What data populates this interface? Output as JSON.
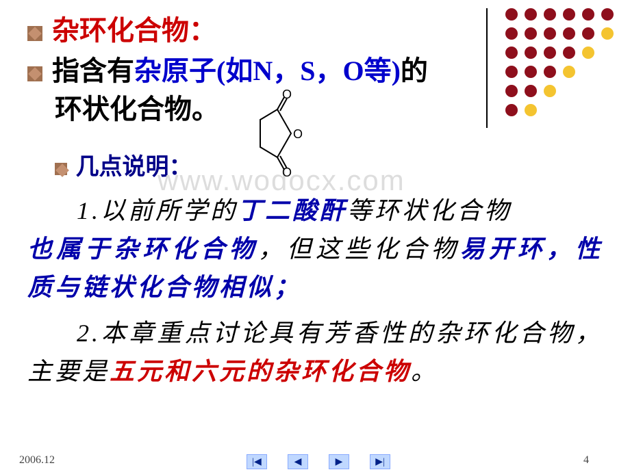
{
  "title": {
    "text_red": "杂环化合物：",
    "text_red_color": "#cc0000"
  },
  "definition": {
    "prefix": "指含有",
    "heteroatom": "杂原子(如N，S，O等)",
    "heteroatom_color": "#0000cc",
    "suffix": "的",
    "line2": "环状化合物。"
  },
  "notes_heading": "几点说明：",
  "point1": {
    "t1": "1.以前所学的",
    "t2": "丁二酸酐",
    "t3": "等环状化合物",
    "t4": "也属于杂环化合物",
    "t5": "，但这些化合物",
    "t6": "易开环，性质与链状化合物相似；",
    "blue_color": "#0000aa"
  },
  "point2": {
    "t1": "2.本章重点讨论具有芳香性的杂环化合物，主要是",
    "t2": "五元和六元的杂环化合物",
    "t3": "。",
    "red_color": "#cc0000"
  },
  "watermark": "www.wodocx.com",
  "footer_date": "2006.12",
  "footer_page": "4",
  "dot_grid": {
    "colors": [
      [
        "#8e0f1c",
        "#8e0f1c",
        "#8e0f1c",
        "#8e0f1c",
        "#8e0f1c",
        "#8e0f1c"
      ],
      [
        "#8e0f1c",
        "#8e0f1c",
        "#8e0f1c",
        "#8e0f1c",
        "#8e0f1c",
        "#f4c430"
      ],
      [
        "#8e0f1c",
        "#8e0f1c",
        "#8e0f1c",
        "#8e0f1c",
        "#f4c430",
        "#ffffff"
      ],
      [
        "#8e0f1c",
        "#8e0f1c",
        "#8e0f1c",
        "#f4c430",
        "#ffffff",
        "#ffffff"
      ],
      [
        "#8e0f1c",
        "#8e0f1c",
        "#f4c430",
        "#ffffff",
        "#ffffff",
        "#ffffff"
      ],
      [
        "#8e0f1c",
        "#f4c430",
        "#ffffff",
        "#ffffff",
        "#ffffff",
        "#ffffff"
      ]
    ]
  },
  "nav": [
    "|◀",
    "◀",
    "▶",
    "▶|"
  ],
  "colors": {
    "black": "#000000"
  }
}
